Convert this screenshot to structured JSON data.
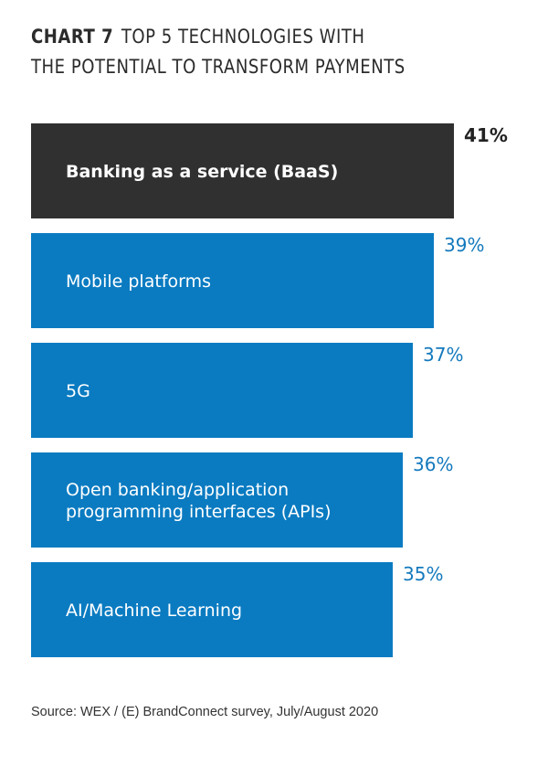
{
  "title": {
    "chart_label": "CHART 7",
    "line1": "TOP 5 TECHNOLOGIES WITH",
    "line2": "THE POTENTIAL TO TRANSFORM PAYMENTS"
  },
  "source": "Source: WEX / (E) BrandConnect survey, July/August 2020",
  "colors": {
    "highlight_bar": "#303030",
    "bar": "#0a7bc1",
    "bar_text": "#ffffff",
    "highlight_value": "#222222",
    "value": "#1479bd"
  },
  "chart_data": {
    "type": "bar",
    "orientation": "horizontal",
    "categories": [
      [
        "Banking as a service (BaaS)"
      ],
      [
        "Mobile platforms"
      ],
      [
        "5G"
      ],
      [
        "Open banking/application",
        "programming interfaces (APIs)"
      ],
      [
        "AI/Machine Learning"
      ]
    ],
    "values": [
      41,
      39,
      37,
      36,
      35
    ],
    "value_labels": [
      "41%",
      "39%",
      "37%",
      "36%",
      "35%"
    ],
    "highlighted_index": 0,
    "unit": "%",
    "grid": false,
    "legend": "none"
  }
}
